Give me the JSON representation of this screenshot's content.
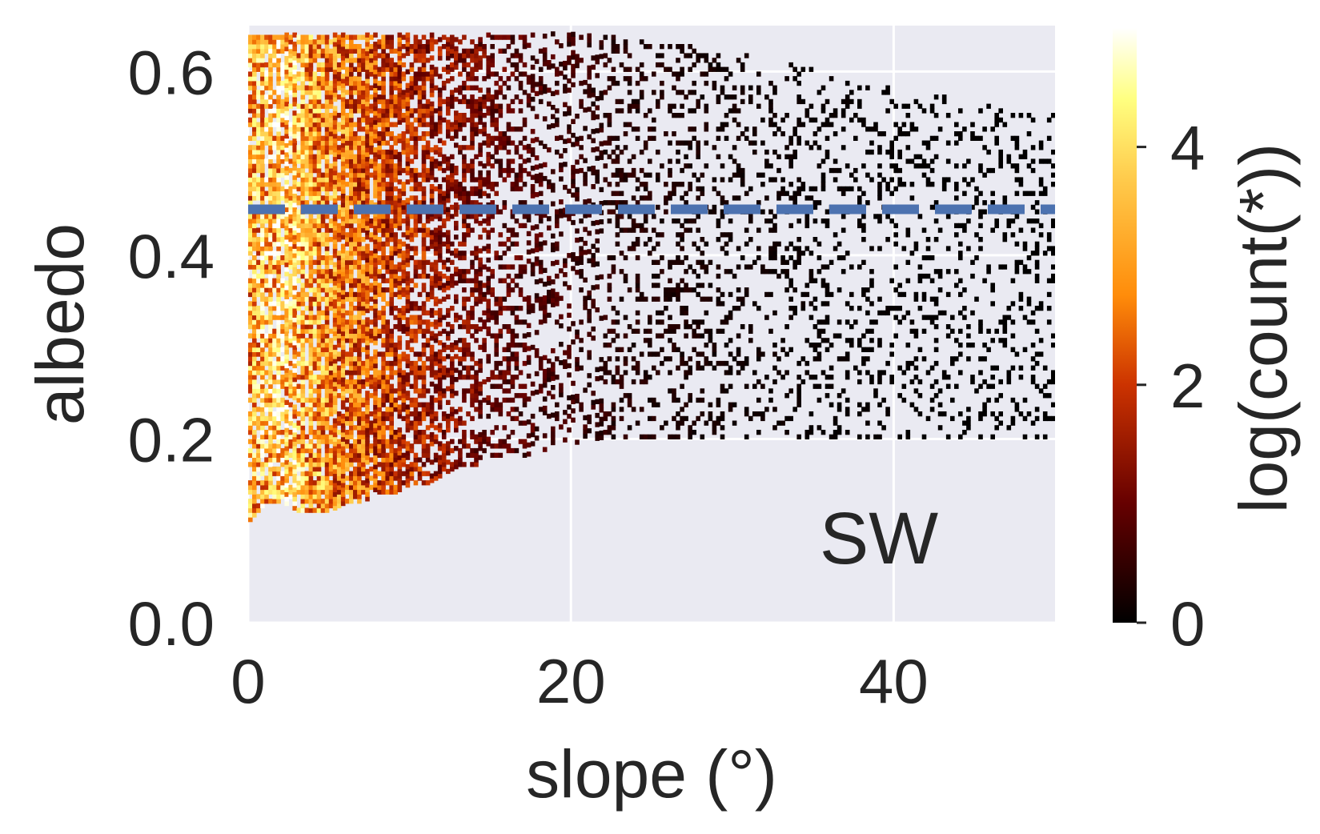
{
  "chart_data": {
    "type": "heatmap",
    "title": "",
    "xlabel": "slope (°)",
    "ylabel": "albedo",
    "xlim": [
      0,
      50
    ],
    "ylim": [
      0,
      0.65
    ],
    "x_ticks": [
      0,
      20,
      40
    ],
    "x_tick_labels": [
      "0",
      "20",
      "40"
    ],
    "y_ticks": [
      0.0,
      0.2,
      0.4,
      0.6
    ],
    "y_tick_labels": [
      "0.0",
      "0.2",
      "0.4",
      "0.6"
    ],
    "grid": true,
    "colormap": "afmhot",
    "colorbar": {
      "label": "log(count(*))",
      "range": [
        0,
        5
      ],
      "ticks": [
        0,
        2,
        4
      ],
      "tick_labels": [
        "0",
        "2",
        "4"
      ]
    },
    "reference_line": {
      "orientation": "horizontal",
      "y": 0.45,
      "style": "dashed",
      "color": "#4c72b0"
    },
    "annotation": "SW",
    "density_bands": [
      {
        "slope": 0,
        "albedo_min": 0.11,
        "albedo_max": 0.64,
        "log_count": 3.6
      },
      {
        "slope": 1,
        "albedo_min": 0.13,
        "albedo_max": 0.64,
        "log_count": 4.1
      },
      {
        "slope": 2,
        "albedo_min": 0.13,
        "albedo_max": 0.64,
        "log_count": 4.4
      },
      {
        "slope": 3,
        "albedo_min": 0.12,
        "albedo_max": 0.64,
        "log_count": 3.8
      },
      {
        "slope": 4,
        "albedo_min": 0.12,
        "albedo_max": 0.64,
        "log_count": 3.5
      },
      {
        "slope": 5,
        "albedo_min": 0.12,
        "albedo_max": 0.64,
        "log_count": 3.2
      },
      {
        "slope": 6,
        "albedo_min": 0.13,
        "albedo_max": 0.64,
        "log_count": 3.0
      },
      {
        "slope": 7,
        "albedo_min": 0.13,
        "albedo_max": 0.64,
        "log_count": 2.7
      },
      {
        "slope": 8,
        "albedo_min": 0.14,
        "albedo_max": 0.64,
        "log_count": 2.4
      },
      {
        "slope": 9,
        "albedo_min": 0.14,
        "albedo_max": 0.64,
        "log_count": 2.2
      },
      {
        "slope": 10,
        "albedo_min": 0.15,
        "albedo_max": 0.64,
        "log_count": 2.0
      },
      {
        "slope": 11,
        "albedo_min": 0.15,
        "albedo_max": 0.64,
        "log_count": 1.8
      },
      {
        "slope": 12,
        "albedo_min": 0.16,
        "albedo_max": 0.64,
        "log_count": 1.6
      },
      {
        "slope": 13,
        "albedo_min": 0.17,
        "albedo_max": 0.64,
        "log_count": 1.4
      },
      {
        "slope": 14,
        "albedo_min": 0.17,
        "albedo_max": 0.64,
        "log_count": 1.3
      },
      {
        "slope": 15,
        "albedo_min": 0.18,
        "albedo_max": 0.64,
        "log_count": 1.1
      },
      {
        "slope": 17,
        "albedo_min": 0.18,
        "albedo_max": 0.64,
        "log_count": 0.9
      },
      {
        "slope": 19,
        "albedo_min": 0.19,
        "albedo_max": 0.64,
        "log_count": 0.7
      },
      {
        "slope": 22,
        "albedo_min": 0.2,
        "albedo_max": 0.64,
        "log_count": 0.5
      },
      {
        "slope": 25,
        "albedo_min": 0.2,
        "albedo_max": 0.63,
        "log_count": 0.35
      },
      {
        "slope": 30,
        "albedo_min": 0.2,
        "albedo_max": 0.62,
        "log_count": 0.2
      },
      {
        "slope": 35,
        "albedo_min": 0.2,
        "albedo_max": 0.6,
        "log_count": 0.1
      },
      {
        "slope": 40,
        "albedo_min": 0.2,
        "albedo_max": 0.58,
        "log_count": 0.05
      },
      {
        "slope": 50,
        "albedo_min": 0.2,
        "albedo_max": 0.55,
        "log_count": 0.0
      }
    ]
  }
}
